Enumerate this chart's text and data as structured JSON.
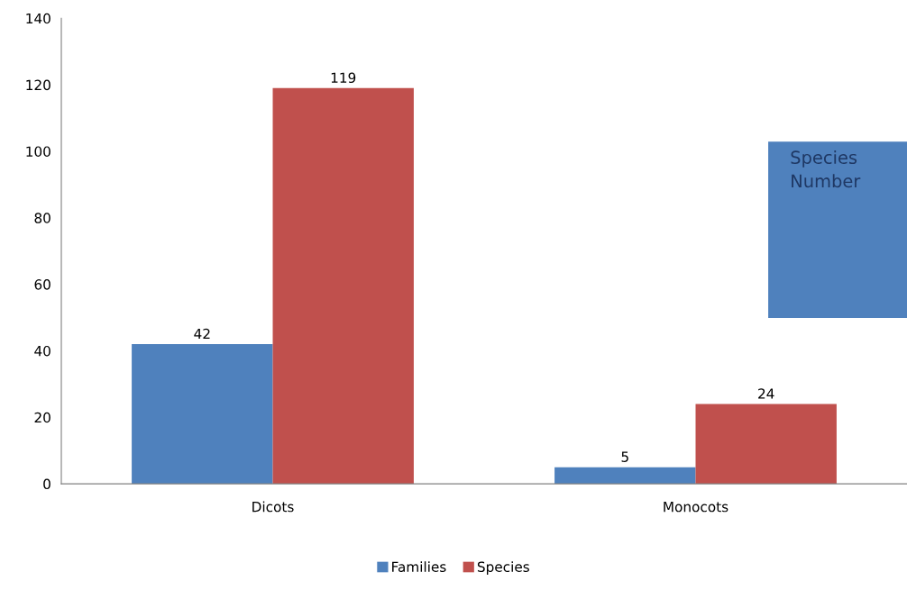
{
  "chart_data": {
    "type": "bar",
    "categories": [
      "Dicots",
      "Monocots"
    ],
    "series": [
      {
        "name": "Families",
        "color": "#4f81bd",
        "values": [
          42,
          5
        ]
      },
      {
        "name": "Species",
        "color": "#c0504d",
        "values": [
          119,
          24
        ]
      }
    ],
    "ylim": [
      0,
      140
    ],
    "yticks": [
      0,
      20,
      40,
      60,
      80,
      100,
      120,
      140
    ],
    "grid": false,
    "legend": "bottom",
    "data_labels": true,
    "annotations": [
      "Species\nNumber"
    ]
  }
}
